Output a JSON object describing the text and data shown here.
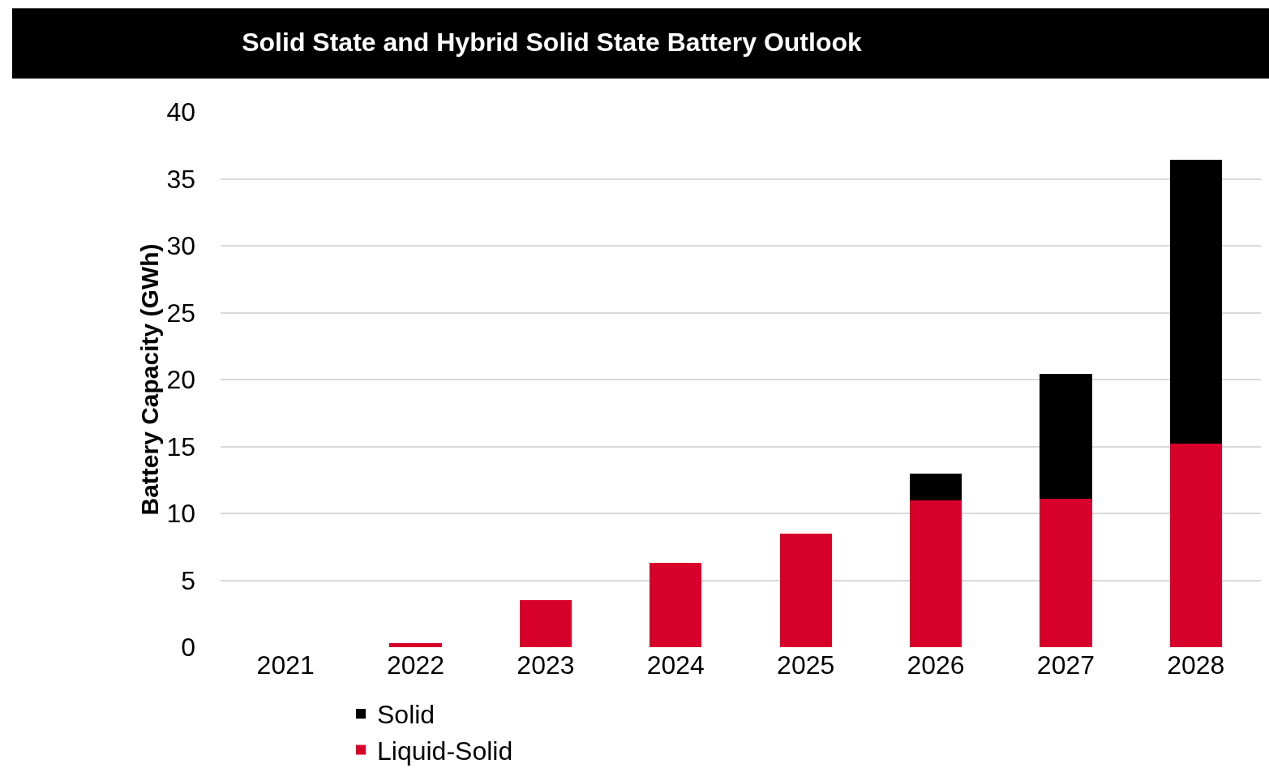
{
  "chart_data": {
    "type": "bar",
    "title": "Solid State and Hybrid Solid State Battery Outlook",
    "ylabel": "Battery Capacity (GWh)",
    "categories": [
      "2021",
      "2022",
      "2023",
      "2024",
      "2025",
      "2026",
      "2027",
      "2028"
    ],
    "series": [
      {
        "name": "Liquid-Solid",
        "color": "#d7002a",
        "values": [
          0,
          0.3,
          3.5,
          6.3,
          8.5,
          11.0,
          11.1,
          15.2
        ]
      },
      {
        "name": "Solid",
        "color": "#000000",
        "values": [
          0,
          0,
          0,
          0,
          0,
          2.0,
          9.3,
          21.2
        ]
      }
    ],
    "stacked": true,
    "ylim": [
      0,
      40
    ],
    "yticks": [
      0,
      5,
      10,
      15,
      20,
      25,
      30,
      35,
      40
    ],
    "grid": "y",
    "legend": "bottom"
  }
}
